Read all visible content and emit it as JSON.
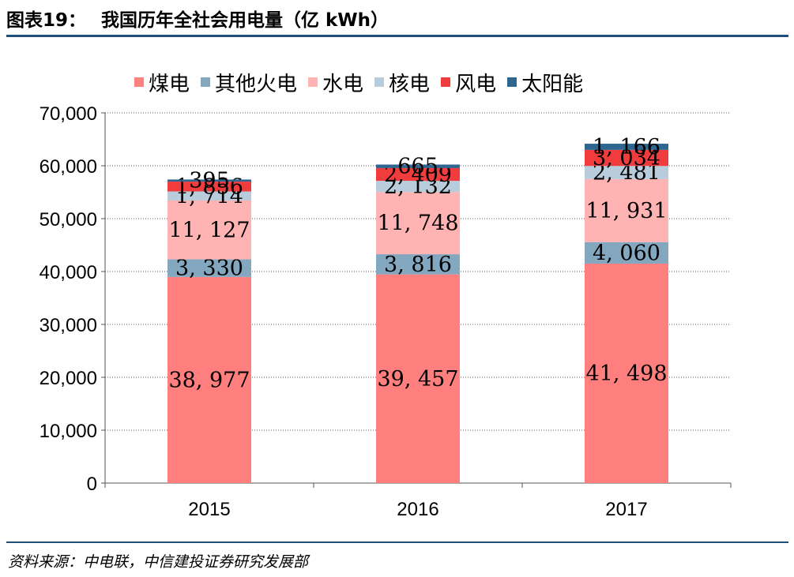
{
  "header": {
    "figure_no": "图表19：",
    "title": "我国历年全社会用电量（亿 kWh）"
  },
  "footer": {
    "source": "资料来源：中电联，中信建投证券研究发展部"
  },
  "chart_data": {
    "type": "bar",
    "stacked": true,
    "categories": [
      "2015",
      "2016",
      "2017"
    ],
    "series": [
      {
        "name": "煤电",
        "color": "#ff7f7f",
        "values": [
          38977,
          39457,
          41498
        ],
        "labels": [
          "38, 977",
          "39, 457",
          "41, 498"
        ]
      },
      {
        "name": "其他火电",
        "color": "#84a7c0",
        "values": [
          3330,
          3816,
          4060
        ],
        "labels": [
          "3, 330",
          "3, 816",
          "4, 060"
        ]
      },
      {
        "name": "水电",
        "color": "#ffb3b3",
        "values": [
          11127,
          11748,
          11931
        ],
        "labels": [
          "11, 127",
          "11, 748",
          "11, 931"
        ]
      },
      {
        "name": "核电",
        "color": "#b8ccdb",
        "values": [
          1714,
          2132,
          2481
        ],
        "labels": [
          "1, 714",
          "2, 132",
          "2, 481"
        ]
      },
      {
        "name": "风电",
        "color": "#f03c3c",
        "values": [
          1856,
          2409,
          3034
        ],
        "labels": [
          "1, 856",
          "2, 409",
          "3, 034"
        ]
      },
      {
        "name": "太阳能",
        "color": "#2f6690",
        "values": [
          395,
          665,
          1166
        ],
        "labels": [
          "395",
          "665",
          "1, 166"
        ]
      }
    ],
    "yticks": [
      "0",
      "10,000",
      "20,000",
      "30,000",
      "40,000",
      "50,000",
      "60,000",
      "70,000"
    ],
    "ylim": [
      0,
      70000
    ],
    "grid": "horizontal dotted",
    "legend": "top"
  }
}
